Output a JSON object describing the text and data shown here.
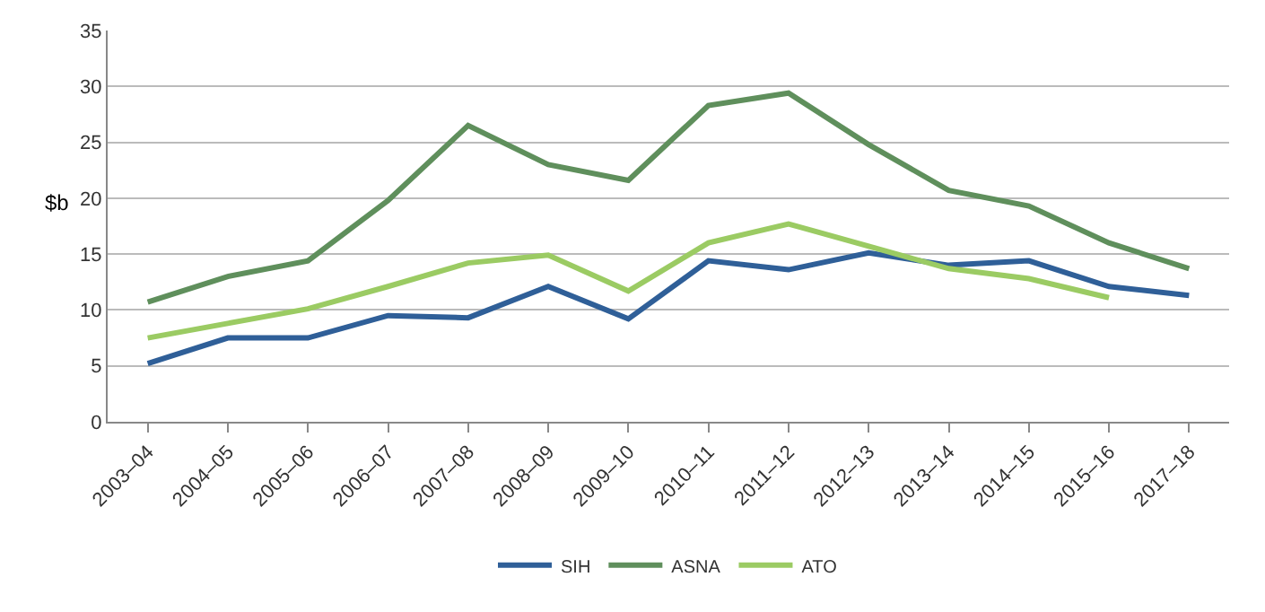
{
  "chart_data": {
    "type": "line",
    "ylabel": "$b",
    "categories": [
      "2003–04",
      "2004–05",
      "2005–06",
      "2006–07",
      "2007–08",
      "2008–09",
      "2009–10",
      "2010–11",
      "2011–12",
      "2012–13",
      "2013–14",
      "2014–15",
      "2015–16",
      "2017–18"
    ],
    "series": [
      {
        "name": "SIH",
        "color": "#2f5f98",
        "values": [
          5.2,
          7.5,
          7.5,
          9.5,
          9.3,
          12.1,
          9.2,
          14.4,
          13.6,
          15.1,
          14.0,
          14.4,
          12.1,
          11.3
        ]
      },
      {
        "name": "ASNA",
        "color": "#5f8f5c",
        "values": [
          10.7,
          13.0,
          14.4,
          19.8,
          26.5,
          23.0,
          21.6,
          28.3,
          29.4,
          24.8,
          20.7,
          19.3,
          16.0,
          13.7
        ]
      },
      {
        "name": "ATO",
        "color": "#9bcb63",
        "values": [
          7.5,
          8.8,
          10.1,
          12.1,
          14.2,
          14.9,
          11.7,
          16.0,
          17.7,
          15.7,
          13.7,
          12.8,
          11.1,
          null
        ]
      }
    ],
    "ylim": [
      0,
      35
    ],
    "yticks": [
      0,
      5,
      10,
      15,
      20,
      25,
      30,
      35
    ],
    "grid": "y",
    "legend": "bottom",
    "marker": "none",
    "line_style": "solid"
  }
}
